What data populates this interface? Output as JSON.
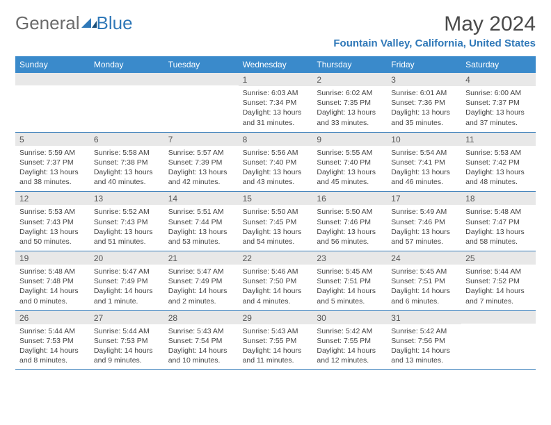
{
  "brand": {
    "part1": "General",
    "part2": "Blue"
  },
  "title": "May 2024",
  "location": "Fountain Valley, California, United States",
  "colors": {
    "header_bg": "#3a8acb",
    "accent": "#2f78b8",
    "daynum_bg": "#e8e8e8",
    "text": "#444444",
    "title_text": "#4a4a4a"
  },
  "day_names": [
    "Sunday",
    "Monday",
    "Tuesday",
    "Wednesday",
    "Thursday",
    "Friday",
    "Saturday"
  ],
  "weeks": [
    [
      {
        "n": "",
        "sr": "",
        "ss": "",
        "dl": ""
      },
      {
        "n": "",
        "sr": "",
        "ss": "",
        "dl": ""
      },
      {
        "n": "",
        "sr": "",
        "ss": "",
        "dl": ""
      },
      {
        "n": "1",
        "sr": "Sunrise: 6:03 AM",
        "ss": "Sunset: 7:34 PM",
        "dl": "Daylight: 13 hours and 31 minutes."
      },
      {
        "n": "2",
        "sr": "Sunrise: 6:02 AM",
        "ss": "Sunset: 7:35 PM",
        "dl": "Daylight: 13 hours and 33 minutes."
      },
      {
        "n": "3",
        "sr": "Sunrise: 6:01 AM",
        "ss": "Sunset: 7:36 PM",
        "dl": "Daylight: 13 hours and 35 minutes."
      },
      {
        "n": "4",
        "sr": "Sunrise: 6:00 AM",
        "ss": "Sunset: 7:37 PM",
        "dl": "Daylight: 13 hours and 37 minutes."
      }
    ],
    [
      {
        "n": "5",
        "sr": "Sunrise: 5:59 AM",
        "ss": "Sunset: 7:37 PM",
        "dl": "Daylight: 13 hours and 38 minutes."
      },
      {
        "n": "6",
        "sr": "Sunrise: 5:58 AM",
        "ss": "Sunset: 7:38 PM",
        "dl": "Daylight: 13 hours and 40 minutes."
      },
      {
        "n": "7",
        "sr": "Sunrise: 5:57 AM",
        "ss": "Sunset: 7:39 PM",
        "dl": "Daylight: 13 hours and 42 minutes."
      },
      {
        "n": "8",
        "sr": "Sunrise: 5:56 AM",
        "ss": "Sunset: 7:40 PM",
        "dl": "Daylight: 13 hours and 43 minutes."
      },
      {
        "n": "9",
        "sr": "Sunrise: 5:55 AM",
        "ss": "Sunset: 7:40 PM",
        "dl": "Daylight: 13 hours and 45 minutes."
      },
      {
        "n": "10",
        "sr": "Sunrise: 5:54 AM",
        "ss": "Sunset: 7:41 PM",
        "dl": "Daylight: 13 hours and 46 minutes."
      },
      {
        "n": "11",
        "sr": "Sunrise: 5:53 AM",
        "ss": "Sunset: 7:42 PM",
        "dl": "Daylight: 13 hours and 48 minutes."
      }
    ],
    [
      {
        "n": "12",
        "sr": "Sunrise: 5:53 AM",
        "ss": "Sunset: 7:43 PM",
        "dl": "Daylight: 13 hours and 50 minutes."
      },
      {
        "n": "13",
        "sr": "Sunrise: 5:52 AM",
        "ss": "Sunset: 7:43 PM",
        "dl": "Daylight: 13 hours and 51 minutes."
      },
      {
        "n": "14",
        "sr": "Sunrise: 5:51 AM",
        "ss": "Sunset: 7:44 PM",
        "dl": "Daylight: 13 hours and 53 minutes."
      },
      {
        "n": "15",
        "sr": "Sunrise: 5:50 AM",
        "ss": "Sunset: 7:45 PM",
        "dl": "Daylight: 13 hours and 54 minutes."
      },
      {
        "n": "16",
        "sr": "Sunrise: 5:50 AM",
        "ss": "Sunset: 7:46 PM",
        "dl": "Daylight: 13 hours and 56 minutes."
      },
      {
        "n": "17",
        "sr": "Sunrise: 5:49 AM",
        "ss": "Sunset: 7:46 PM",
        "dl": "Daylight: 13 hours and 57 minutes."
      },
      {
        "n": "18",
        "sr": "Sunrise: 5:48 AM",
        "ss": "Sunset: 7:47 PM",
        "dl": "Daylight: 13 hours and 58 minutes."
      }
    ],
    [
      {
        "n": "19",
        "sr": "Sunrise: 5:48 AM",
        "ss": "Sunset: 7:48 PM",
        "dl": "Daylight: 14 hours and 0 minutes."
      },
      {
        "n": "20",
        "sr": "Sunrise: 5:47 AM",
        "ss": "Sunset: 7:49 PM",
        "dl": "Daylight: 14 hours and 1 minute."
      },
      {
        "n": "21",
        "sr": "Sunrise: 5:47 AM",
        "ss": "Sunset: 7:49 PM",
        "dl": "Daylight: 14 hours and 2 minutes."
      },
      {
        "n": "22",
        "sr": "Sunrise: 5:46 AM",
        "ss": "Sunset: 7:50 PM",
        "dl": "Daylight: 14 hours and 4 minutes."
      },
      {
        "n": "23",
        "sr": "Sunrise: 5:45 AM",
        "ss": "Sunset: 7:51 PM",
        "dl": "Daylight: 14 hours and 5 minutes."
      },
      {
        "n": "24",
        "sr": "Sunrise: 5:45 AM",
        "ss": "Sunset: 7:51 PM",
        "dl": "Daylight: 14 hours and 6 minutes."
      },
      {
        "n": "25",
        "sr": "Sunrise: 5:44 AM",
        "ss": "Sunset: 7:52 PM",
        "dl": "Daylight: 14 hours and 7 minutes."
      }
    ],
    [
      {
        "n": "26",
        "sr": "Sunrise: 5:44 AM",
        "ss": "Sunset: 7:53 PM",
        "dl": "Daylight: 14 hours and 8 minutes."
      },
      {
        "n": "27",
        "sr": "Sunrise: 5:44 AM",
        "ss": "Sunset: 7:53 PM",
        "dl": "Daylight: 14 hours and 9 minutes."
      },
      {
        "n": "28",
        "sr": "Sunrise: 5:43 AM",
        "ss": "Sunset: 7:54 PM",
        "dl": "Daylight: 14 hours and 10 minutes."
      },
      {
        "n": "29",
        "sr": "Sunrise: 5:43 AM",
        "ss": "Sunset: 7:55 PM",
        "dl": "Daylight: 14 hours and 11 minutes."
      },
      {
        "n": "30",
        "sr": "Sunrise: 5:42 AM",
        "ss": "Sunset: 7:55 PM",
        "dl": "Daylight: 14 hours and 12 minutes."
      },
      {
        "n": "31",
        "sr": "Sunrise: 5:42 AM",
        "ss": "Sunset: 7:56 PM",
        "dl": "Daylight: 14 hours and 13 minutes."
      },
      {
        "n": "",
        "sr": "",
        "ss": "",
        "dl": ""
      }
    ]
  ]
}
